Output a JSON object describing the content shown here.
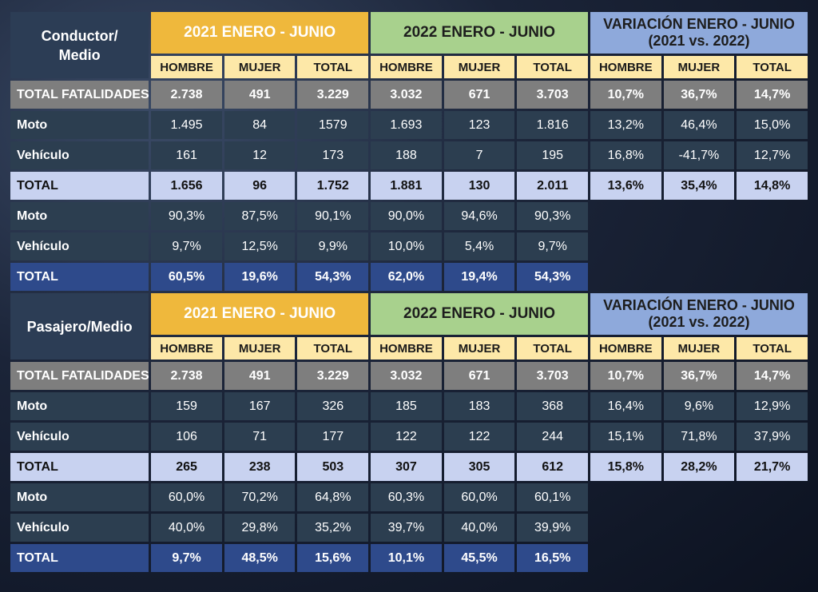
{
  "sections": [
    {
      "title": "Conductor/\nMedio",
      "group_2021": "2021 ENERO - JUNIO",
      "group_2022": "2022 ENERO - JUNIO",
      "group_var": "VARIACIÓN ENERO - JUNIO\n(2021 vs. 2022)",
      "sub": [
        "HOMBRE",
        "MUJER",
        "TOTAL",
        "HOMBRE",
        "MUJER",
        "TOTAL",
        "HOMBRE",
        "MUJER",
        "TOTAL"
      ],
      "rows": [
        {
          "label": "TOTAL FATALIDADES",
          "style": "tf",
          "cells": [
            "2.738",
            "491",
            "3.229",
            "3.032",
            "671",
            "3.703",
            "10,7%",
            "36,7%",
            "14,7%"
          ]
        },
        {
          "label": "Moto",
          "style": "dark",
          "cells": [
            "1.495",
            "84",
            "1579",
            "1.693",
            "123",
            "1.816",
            "13,2%",
            "46,4%",
            "15,0%"
          ]
        },
        {
          "label": "Vehículo",
          "style": "dark",
          "cells": [
            "161",
            "12",
            "173",
            "188",
            "7",
            "195",
            "16,8%",
            "-41,7%",
            "12,7%"
          ]
        },
        {
          "label": "TOTAL",
          "style": "total",
          "cells": [
            "1.656",
            "96",
            "1.752",
            "1.881",
            "130",
            "2.011",
            "13,6%",
            "35,4%",
            "14,8%"
          ]
        },
        {
          "label": "Moto",
          "style": "dark",
          "cells": [
            "90,3%",
            "87,5%",
            "90,1%",
            "90,0%",
            "94,6%",
            "90,3%"
          ]
        },
        {
          "label": "Vehículo",
          "style": "dark",
          "cells": [
            "9,7%",
            "12,5%",
            "9,9%",
            "10,0%",
            "5,4%",
            "9,7%"
          ]
        },
        {
          "label": "TOTAL",
          "style": "blue",
          "cells": [
            "60,5%",
            "19,6%",
            "54,3%",
            "62,0%",
            "19,4%",
            "54,3%"
          ]
        }
      ]
    },
    {
      "title": "Pasajero/Medio",
      "group_2021": "2021 ENERO - JUNIO",
      "group_2022": "2022 ENERO - JUNIO",
      "group_var": "VARIACIÓN ENERO - JUNIO\n(2021 vs. 2022)",
      "sub": [
        "HOMBRE",
        "MUJER",
        "TOTAL",
        "HOMBRE",
        "MUJER",
        "TOTAL",
        "HOMBRE",
        "MUJER",
        "TOTAL"
      ],
      "rows": [
        {
          "label": "TOTAL FATALIDADES",
          "style": "tf",
          "cells": [
            "2.738",
            "491",
            "3.229",
            "3.032",
            "671",
            "3.703",
            "10,7%",
            "36,7%",
            "14,7%"
          ]
        },
        {
          "label": "Moto",
          "style": "dark",
          "cells": [
            "159",
            "167",
            "326",
            "185",
            "183",
            "368",
            "16,4%",
            "9,6%",
            "12,9%"
          ]
        },
        {
          "label": "Vehículo",
          "style": "dark",
          "cells": [
            "106",
            "71",
            "177",
            "122",
            "122",
            "244",
            "15,1%",
            "71,8%",
            "37,9%"
          ]
        },
        {
          "label": "TOTAL",
          "style": "total",
          "cells": [
            "265",
            "238",
            "503",
            "307",
            "305",
            "612",
            "15,8%",
            "28,2%",
            "21,7%"
          ]
        },
        {
          "label": "Moto",
          "style": "dark",
          "cells": [
            "60,0%",
            "70,2%",
            "64,8%",
            "60,3%",
            "60,0%",
            "60,1%"
          ]
        },
        {
          "label": "Vehículo",
          "style": "dark",
          "cells": [
            "40,0%",
            "29,8%",
            "35,2%",
            "39,7%",
            "40,0%",
            "39,9%"
          ]
        },
        {
          "label": "TOTAL",
          "style": "blue",
          "cells": [
            "9,7%",
            "48,5%",
            "15,6%",
            "10,1%",
            "45,5%",
            "16,5%"
          ]
        }
      ]
    }
  ]
}
